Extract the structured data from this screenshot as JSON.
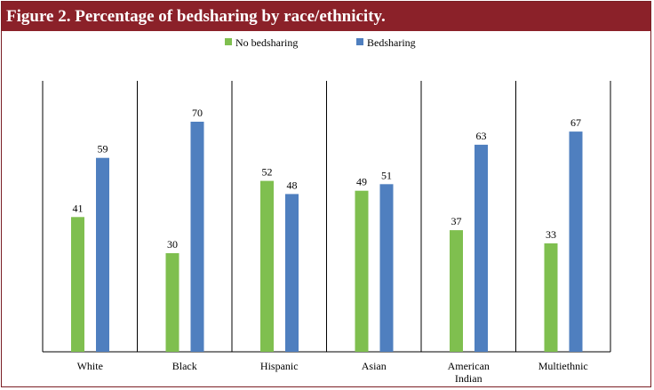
{
  "title": "Figure 2. Percentage of bedsharing by race/ethnicity.",
  "colors": {
    "title_bg": "#8b2129",
    "no_bedsharing": "#7fbf4f",
    "bedsharing": "#4f7fbf"
  },
  "chart_data": {
    "type": "bar",
    "title": "Figure 2. Percentage of bedsharing by race/ethnicity.",
    "xlabel": "",
    "ylabel": "",
    "ylim": [
      0,
      80
    ],
    "grid": false,
    "legend": "top",
    "categories": [
      [
        "White"
      ],
      [
        "Black"
      ],
      [
        "Hispanic"
      ],
      [
        "Asian"
      ],
      [
        "American",
        "Indian"
      ],
      [
        "Multiethnic"
      ]
    ],
    "series": [
      {
        "name": "No bedsharing",
        "color": "#7fbf4f",
        "values": [
          41,
          30,
          52,
          49,
          37,
          33
        ]
      },
      {
        "name": "Bedsharing",
        "color": "#4f7fbf",
        "values": [
          59,
          70,
          48,
          51,
          63,
          67
        ]
      }
    ]
  }
}
